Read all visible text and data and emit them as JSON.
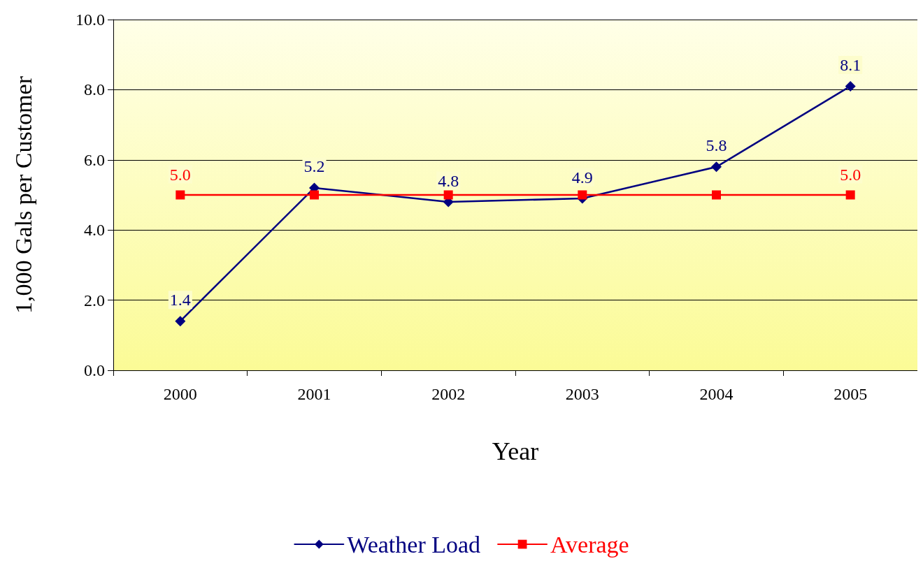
{
  "chart_data": {
    "type": "line",
    "xlabel": "Year",
    "ylabel": "1,000 Gals per Customer",
    "categories": [
      "2000",
      "2001",
      "2002",
      "2003",
      "2004",
      "2005"
    ],
    "series": [
      {
        "name": "Weather Load",
        "color": "#000080",
        "marker": "diamond",
        "values": [
          1.4,
          5.2,
          4.8,
          4.9,
          5.8,
          8.1
        ],
        "value_labels": [
          "1.4",
          "5.2",
          "4.8",
          "4.9",
          "5.8",
          "8.1"
        ]
      },
      {
        "name": "Average",
        "color": "#ff0000",
        "marker": "square",
        "values": [
          5.0,
          5.0,
          5.0,
          5.0,
          5.0,
          5.0
        ],
        "value_labels": [
          "5.0",
          null,
          null,
          null,
          null,
          "5.0"
        ]
      }
    ],
    "ylim": [
      0,
      10
    ],
    "yticks": [
      {
        "value": 0,
        "label": "0.0"
      },
      {
        "value": 2,
        "label": "2.0"
      },
      {
        "value": 4,
        "label": "4.0"
      },
      {
        "value": 6,
        "label": "6.0"
      },
      {
        "value": 8,
        "label": "8.0"
      },
      {
        "value": 10,
        "label": "10.0"
      }
    ],
    "grid": "y",
    "legend": "bottom",
    "line_style": "solid"
  }
}
